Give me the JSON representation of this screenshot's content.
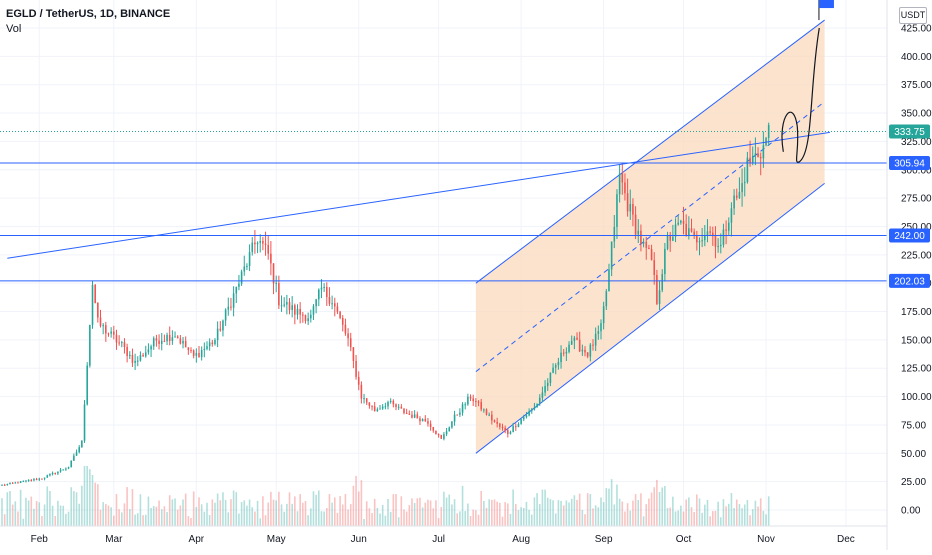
{
  "header": {
    "symbol_line": "EGLD / TetherUS, 1D, BINANCE",
    "volume_label": "Vol",
    "currency": "USDT"
  },
  "colors": {
    "up": "#26a69a",
    "down": "#ef5350",
    "line_blue": "#2962ff",
    "channel_fill": "#f9d9bd",
    "label_blue": "#2962ff"
  },
  "chart_data": {
    "type": "candlestick",
    "x_ticks": [
      "Feb",
      "Mar",
      "Apr",
      "May",
      "Jun",
      "Jul",
      "Aug",
      "Sep",
      "Oct",
      "Nov",
      "Dec"
    ],
    "y_ticks": [
      "0.00",
      "25.00",
      "50.00",
      "75.00",
      "100.00",
      "125.00",
      "150.00",
      "175.00",
      "200.00",
      "225.00",
      "250.00",
      "275.00",
      "300.00",
      "325.00",
      "350.00",
      "375.00",
      "400.00",
      "425.00"
    ],
    "ylim": [
      -10,
      445
    ],
    "price_labels": [
      {
        "text": "333.75",
        "value": 333.75,
        "style": "last"
      },
      {
        "text": "305.94",
        "value": 305.94,
        "style": "level"
      },
      {
        "text": "242.00",
        "value": 242.0,
        "style": "level"
      },
      {
        "text": "202.03",
        "value": 202.03,
        "style": "level"
      }
    ],
    "horizontal_levels": [
      305.94,
      242.0,
      202.03
    ],
    "trendline": {
      "from": [
        "Jan 20",
        222
      ],
      "to": [
        "Nov 25",
        333
      ]
    },
    "channel": {
      "upper": {
        "from": [
          "Jul 15",
          200
        ],
        "to": [
          "Nov 23",
          432
        ]
      },
      "mid": {
        "from": [
          "Jul 15",
          122
        ],
        "to": [
          "Nov 23",
          360
        ]
      },
      "lower": {
        "from": [
          "Jul 15",
          50
        ],
        "to": [
          "Nov 23",
          288
        ]
      }
    },
    "projection": {
      "start": [
        "Nov 12",
        307
      ],
      "end": [
        "Nov 21",
        425
      ]
    },
    "flag": [
      "Nov 22",
      432
    ],
    "anchors": [
      [
        0,
        22
      ],
      [
        15,
        28
      ],
      [
        25,
        38
      ],
      [
        30,
        60
      ],
      [
        34,
        200
      ],
      [
        36,
        165
      ],
      [
        45,
        145
      ],
      [
        50,
        130
      ],
      [
        58,
        150
      ],
      [
        65,
        155
      ],
      [
        72,
        135
      ],
      [
        80,
        150
      ],
      [
        88,
        195
      ],
      [
        92,
        218
      ],
      [
        96,
        240
      ],
      [
        100,
        225
      ],
      [
        104,
        185
      ],
      [
        110,
        175
      ],
      [
        116,
        170
      ],
      [
        120,
        195
      ],
      [
        124,
        185
      ],
      [
        130,
        150
      ],
      [
        135,
        100
      ],
      [
        140,
        88
      ],
      [
        145,
        95
      ],
      [
        152,
        85
      ],
      [
        160,
        78
      ],
      [
        165,
        62
      ],
      [
        170,
        82
      ],
      [
        176,
        100
      ],
      [
        182,
        85
      ],
      [
        186,
        75
      ],
      [
        190,
        68
      ],
      [
        195,
        80
      ],
      [
        200,
        90
      ],
      [
        206,
        118
      ],
      [
        211,
        140
      ],
      [
        214,
        150
      ],
      [
        220,
        138
      ],
      [
        225,
        160
      ],
      [
        228,
        210
      ],
      [
        232,
        295
      ],
      [
        235,
        270
      ],
      [
        238,
        250
      ],
      [
        241,
        232
      ],
      [
        244,
        220
      ],
      [
        246,
        185
      ],
      [
        250,
        238
      ],
      [
        255,
        252
      ],
      [
        260,
        238
      ],
      [
        265,
        248
      ],
      [
        270,
        232
      ],
      [
        274,
        270
      ],
      [
        277,
        278
      ],
      [
        280,
        305
      ],
      [
        283,
        312
      ],
      [
        286,
        320
      ],
      [
        288,
        334
      ]
    ],
    "day_range": [
      0,
      306
    ]
  }
}
